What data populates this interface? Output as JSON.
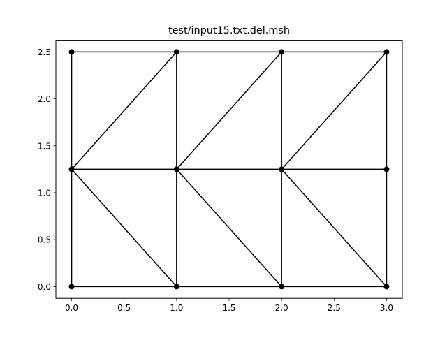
{
  "chart_data": {
    "type": "mesh",
    "title": "test/input15.txt.del.msh",
    "xlabel": "",
    "ylabel": "",
    "xlim": [
      -0.15,
      3.15
    ],
    "ylim": [
      -0.125,
      2.625
    ],
    "xticks": [
      0.0,
      0.5,
      1.0,
      1.5,
      2.0,
      2.5,
      3.0
    ],
    "xtick_labels": [
      "0.0",
      "0.5",
      "1.0",
      "1.5",
      "2.0",
      "2.5",
      "3.0"
    ],
    "yticks": [
      0.0,
      0.5,
      1.0,
      1.5,
      2.0,
      2.5
    ],
    "ytick_labels": [
      "0.0",
      "0.5",
      "1.0",
      "1.5",
      "2.0",
      "2.5"
    ],
    "grid": false,
    "line_color": "#000000",
    "marker_color": "#000000",
    "nodes": [
      [
        0,
        0
      ],
      [
        1,
        0
      ],
      [
        2,
        0
      ],
      [
        3,
        0
      ],
      [
        0,
        1.25
      ],
      [
        1,
        1.25
      ],
      [
        2,
        1.25
      ],
      [
        3,
        1.25
      ],
      [
        0,
        2.5
      ],
      [
        1,
        2.5
      ],
      [
        2,
        2.5
      ],
      [
        3,
        2.5
      ]
    ],
    "edges": [
      [
        [
          0,
          0
        ],
        [
          1,
          0
        ]
      ],
      [
        [
          1,
          0
        ],
        [
          2,
          0
        ]
      ],
      [
        [
          2,
          0
        ],
        [
          3,
          0
        ]
      ],
      [
        [
          0,
          1.25
        ],
        [
          1,
          1.25
        ]
      ],
      [
        [
          1,
          1.25
        ],
        [
          2,
          1.25
        ]
      ],
      [
        [
          2,
          1.25
        ],
        [
          3,
          1.25
        ]
      ],
      [
        [
          0,
          2.5
        ],
        [
          1,
          2.5
        ]
      ],
      [
        [
          1,
          2.5
        ],
        [
          2,
          2.5
        ]
      ],
      [
        [
          2,
          2.5
        ],
        [
          3,
          2.5
        ]
      ],
      [
        [
          0,
          0
        ],
        [
          0,
          1.25
        ]
      ],
      [
        [
          0,
          1.25
        ],
        [
          0,
          2.5
        ]
      ],
      [
        [
          1,
          0
        ],
        [
          1,
          1.25
        ]
      ],
      [
        [
          1,
          1.25
        ],
        [
          1,
          2.5
        ]
      ],
      [
        [
          2,
          0
        ],
        [
          2,
          1.25
        ]
      ],
      [
        [
          2,
          1.25
        ],
        [
          2,
          2.5
        ]
      ],
      [
        [
          3,
          0
        ],
        [
          3,
          1.25
        ]
      ],
      [
        [
          3,
          1.25
        ],
        [
          3,
          2.5
        ]
      ],
      [
        [
          0,
          1.25
        ],
        [
          1,
          2.5
        ]
      ],
      [
        [
          1,
          1.25
        ],
        [
          2,
          2.5
        ]
      ],
      [
        [
          2,
          1.25
        ],
        [
          3,
          2.5
        ]
      ],
      [
        [
          0,
          1.25
        ],
        [
          1,
          0
        ]
      ],
      [
        [
          1,
          1.25
        ],
        [
          2,
          0
        ]
      ],
      [
        [
          2,
          1.25
        ],
        [
          3,
          0
        ]
      ]
    ]
  }
}
